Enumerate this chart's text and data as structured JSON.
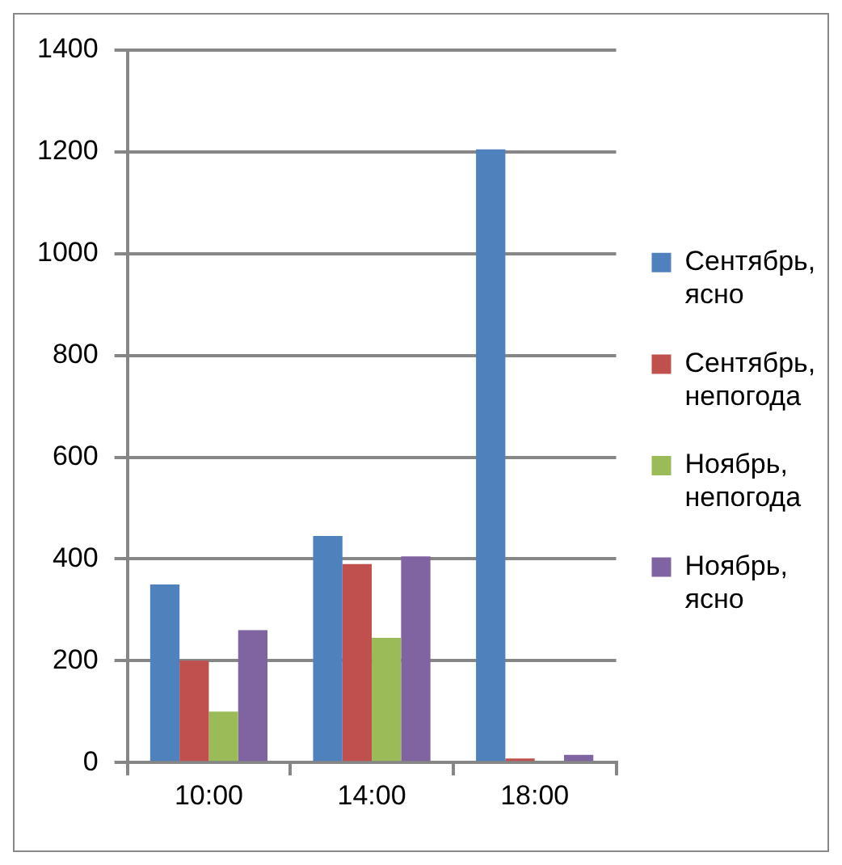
{
  "chart_data": {
    "type": "bar",
    "categories": [
      "10:00",
      "14:00",
      "18:00"
    ],
    "series": [
      {
        "name": "Сентябрь, ясно",
        "color": "#4f81bd",
        "values": [
          350,
          445,
          1205
        ]
      },
      {
        "name": "Сентябрь, непогода",
        "color": "#c0504d",
        "values": [
          200,
          390,
          8
        ]
      },
      {
        "name": "Ноябрь, непогода",
        "color": "#9bbb59",
        "values": [
          100,
          245,
          3
        ]
      },
      {
        "name": "Ноябрь, ясно",
        "color": "#8064a2",
        "values": [
          260,
          405,
          15
        ]
      }
    ],
    "ylim": [
      0,
      1400
    ],
    "yticks": [
      0,
      200,
      400,
      600,
      800,
      1000,
      1200,
      1400
    ],
    "grid": "y",
    "legend": "right"
  }
}
